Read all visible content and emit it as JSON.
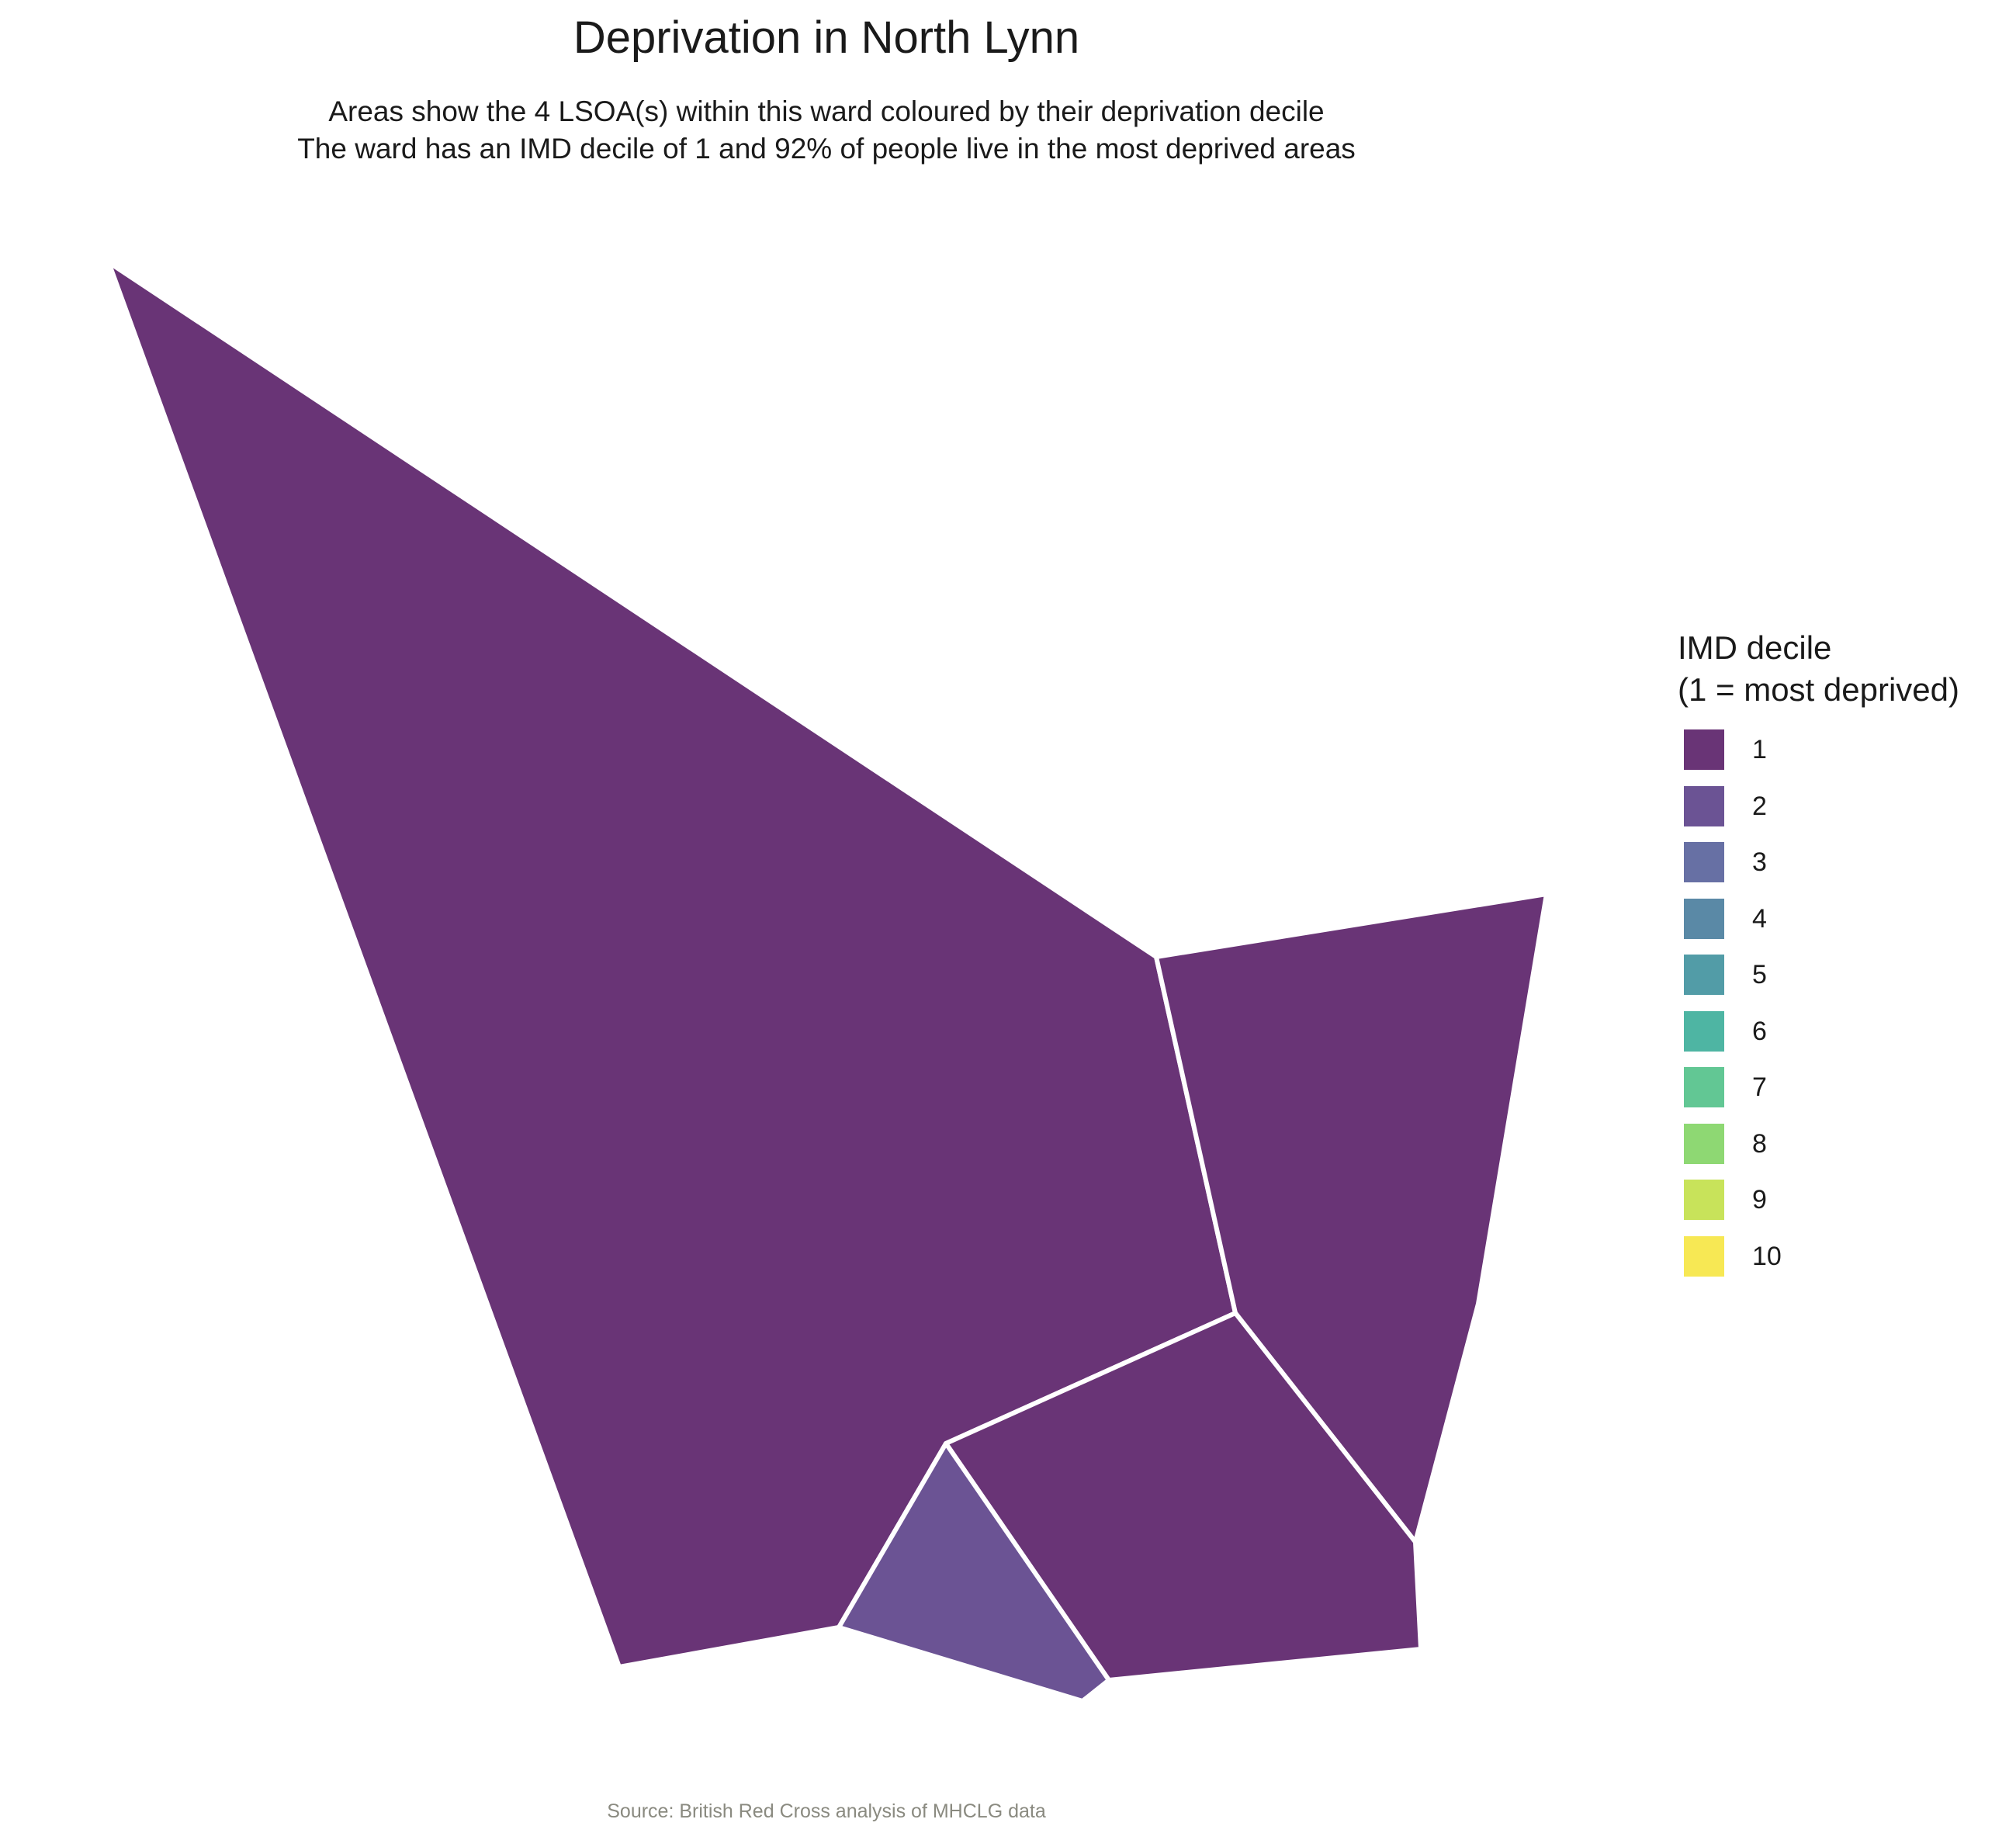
{
  "title": "Deprivation in North Lynn",
  "subtitle": {
    "line1": "Areas show the 4 LSOA(s) within this ward coloured by their deprivation decile",
    "line2": "The ward has an IMD decile of 1 and 92% of people live in the most deprived areas"
  },
  "legend": {
    "title_line1": "IMD decile",
    "title_line2": "(1 = most deprived)",
    "items": [
      {
        "label": "1",
        "color": "#693476"
      },
      {
        "label": "2",
        "color": "#6B5394"
      },
      {
        "label": "3",
        "color": "#6770A4"
      },
      {
        "label": "4",
        "color": "#5A89A6"
      },
      {
        "label": "5",
        "color": "#529CA7"
      },
      {
        "label": "6",
        "color": "#4EB5A3"
      },
      {
        "label": "7",
        "color": "#62C794"
      },
      {
        "label": "8",
        "color": "#8ED873"
      },
      {
        "label": "9",
        "color": "#C8E35A"
      },
      {
        "label": "10",
        "color": "#F7E854"
      }
    ]
  },
  "map": {
    "border_color": "#ffffff",
    "areas": [
      {
        "id": "lsoa-west",
        "decile": 1,
        "color": "#693476"
      },
      {
        "id": "lsoa-east",
        "decile": 1,
        "color": "#693476"
      },
      {
        "id": "lsoa-south",
        "decile": 1,
        "color": "#693476"
      },
      {
        "id": "lsoa-small",
        "decile": 2,
        "color": "#6B5394"
      }
    ]
  },
  "caption": {
    "text": "Source: British Red Cross analysis of MHCLG data",
    "color": "#8a8a80"
  }
}
